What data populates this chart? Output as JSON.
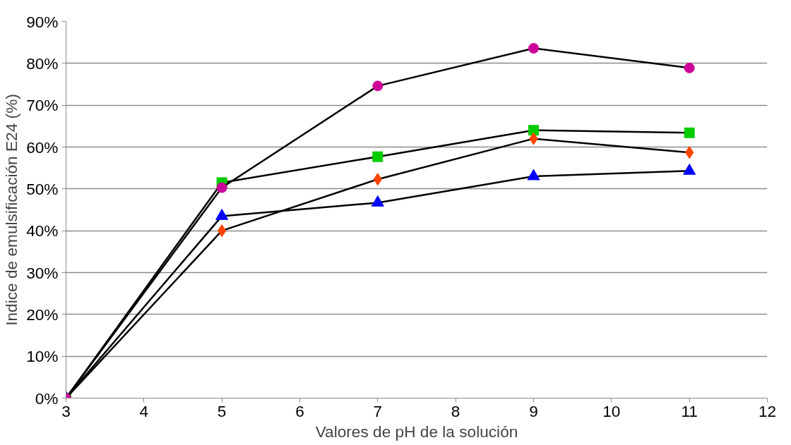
{
  "chart_data": {
    "type": "line",
    "xlabel": "Valores de pH de la solución",
    "ylabel": "Indice de emulsificación E24 (%)",
    "x": [
      3,
      5,
      7,
      9,
      11
    ],
    "series": [
      {
        "color": "#00cc00",
        "marker": "square",
        "values": [
          0,
          51.5,
          57.7,
          64.0,
          63.4
        ]
      },
      {
        "color": "#ff4400",
        "marker": "diamond",
        "values": [
          0,
          40.0,
          52.3,
          62.0,
          58.7
        ]
      },
      {
        "color": "#0000ff",
        "marker": "triangle",
        "values": [
          0,
          43.5,
          46.7,
          53.0,
          54.3
        ]
      },
      {
        "color": "#cc0099",
        "marker": "circle",
        "values": [
          0,
          50.3,
          74.6,
          83.6,
          78.9
        ]
      }
    ],
    "xlim": [
      3,
      12
    ],
    "xticks": [
      3,
      4,
      5,
      6,
      7,
      8,
      9,
      10,
      11,
      12
    ],
    "ylim": [
      0,
      90
    ],
    "yticks": [
      {
        "value": 0,
        "label": "0%"
      },
      {
        "value": 10,
        "label": "10%"
      },
      {
        "value": 20,
        "label": "20%"
      },
      {
        "value": 30,
        "label": "30%"
      },
      {
        "value": 40,
        "label": "40%"
      },
      {
        "value": 50,
        "label": "50%"
      },
      {
        "value": 60,
        "label": "60%"
      },
      {
        "value": 70,
        "label": "70%"
      },
      {
        "value": 80,
        "label": "80%"
      },
      {
        "value": 90,
        "label": "90%"
      }
    ],
    "grid": "y",
    "line_style": "solid"
  }
}
